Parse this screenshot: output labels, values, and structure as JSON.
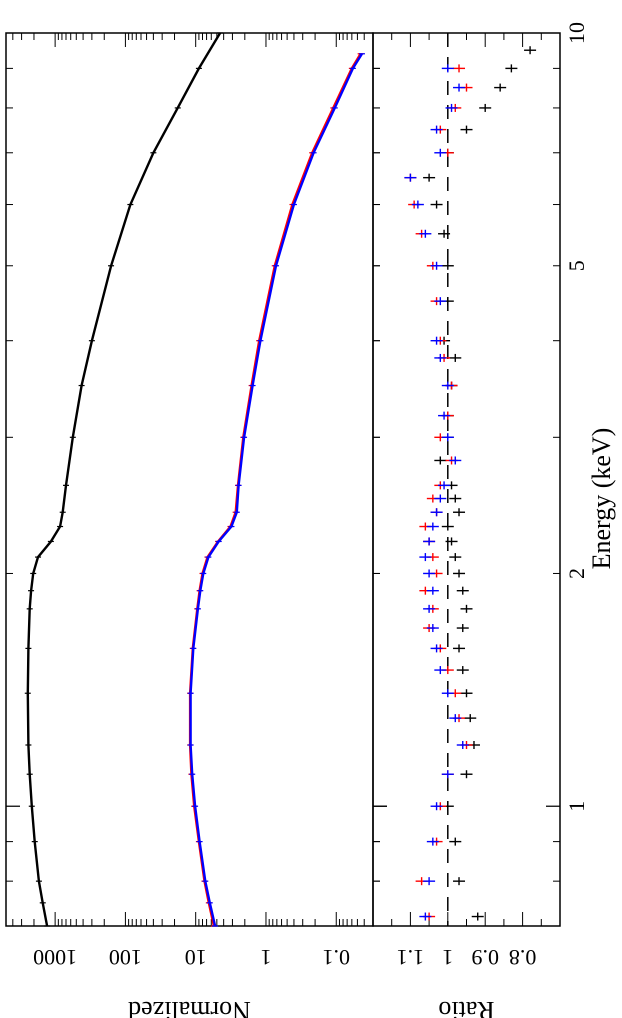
{
  "chart_data": [
    {
      "type": "line",
      "panel": "upper",
      "ylabel": "Normalized",
      "yscale": "log",
      "xscale": "log",
      "xlim": [
        0.7,
        10
      ],
      "ylim": [
        0.03,
        5000
      ],
      "yticks": [
        1000,
        100,
        10,
        1,
        0.1
      ],
      "ytick_labels": [
        "1000",
        "100",
        "10",
        "1",
        "0.1"
      ],
      "grid": false,
      "series": [
        {
          "color": "#000000",
          "x": [
            0.7,
            0.75,
            0.8,
            0.9,
            1.0,
            1.1,
            1.2,
            1.4,
            1.6,
            1.8,
            1.9,
            2.0,
            2.1,
            2.2,
            2.3,
            2.4,
            2.6,
            3.0,
            3.5,
            4.0,
            5.0,
            6.0,
            7.0,
            8.0,
            9.0,
            10.0
          ],
          "y": [
            1300,
            1500,
            1700,
            1950,
            2150,
            2300,
            2400,
            2450,
            2400,
            2300,
            2200,
            2050,
            1750,
            1150,
            850,
            780,
            700,
            560,
            420,
            300,
            160,
            85,
            40,
            18,
            9,
            4.5
          ]
        },
        {
          "color": "#ff0000",
          "x": [
            0.7,
            0.75,
            0.8,
            0.9,
            1.0,
            1.1,
            1.2,
            1.4,
            1.6,
            1.8,
            1.9,
            2.0,
            2.1,
            2.2,
            2.3,
            2.4,
            2.6,
            3.0,
            3.5,
            4.0,
            5.0,
            6.0,
            7.0,
            8.0,
            9.0,
            9.4
          ],
          "y": [
            5.5,
            6.5,
            7.5,
            9.0,
            10.5,
            11.5,
            12.0,
            12.0,
            11.0,
            9.5,
            8.8,
            8.0,
            6.8,
            4.8,
            3.2,
            2.7,
            2.5,
            2.1,
            1.6,
            1.25,
            0.75,
            0.42,
            0.22,
            0.11,
            0.06,
            0.045
          ]
        },
        {
          "color": "#0000ff",
          "x": [
            0.7,
            0.75,
            0.8,
            0.9,
            1.0,
            1.1,
            1.2,
            1.4,
            1.6,
            1.8,
            1.9,
            2.0,
            2.1,
            2.2,
            2.3,
            2.4,
            2.6,
            3.0,
            3.5,
            4.0,
            5.0,
            6.0,
            7.0,
            8.0,
            9.0,
            9.4
          ],
          "y": [
            5.3,
            6.3,
            7.3,
            8.8,
            10.2,
            11.2,
            11.8,
            11.8,
            10.8,
            9.3,
            8.6,
            7.8,
            6.6,
            4.7,
            3.1,
            2.6,
            2.45,
            2.05,
            1.55,
            1.2,
            0.72,
            0.4,
            0.21,
            0.105,
            0.058,
            0.043
          ]
        }
      ]
    },
    {
      "type": "scatter",
      "panel": "lower",
      "ylabel": "Ratio",
      "xlabel": "Energy (keV)",
      "xscale": "log",
      "xlim": [
        0.7,
        10
      ],
      "ylim": [
        0.7,
        1.2
      ],
      "yticks": [
        1.1,
        1,
        0.9,
        0.8
      ],
      "ytick_labels": [
        "1.1",
        "1",
        "0.9",
        "0.8"
      ],
      "xticks": [
        1,
        2,
        5,
        10
      ],
      "xtick_labels": [
        "1",
        "2",
        "5",
        "10"
      ],
      "reference_line": 1.0,
      "grid": false,
      "series": [
        {
          "color": "#000000",
          "x": [
            0.72,
            0.8,
            0.9,
            1.0,
            1.1,
            1.2,
            1.3,
            1.4,
            1.5,
            1.6,
            1.7,
            1.8,
            1.9,
            2.0,
            2.1,
            2.2,
            2.3,
            2.4,
            2.5,
            2.6,
            2.8,
            3.0,
            3.2,
            3.5,
            3.8,
            4.0,
            4.5,
            5.0,
            5.5,
            6.0,
            6.5,
            7.0,
            7.5,
            8.0,
            8.5,
            9.0,
            9.5
          ],
          "y": [
            0.92,
            0.97,
            0.98,
            1.0,
            0.95,
            0.93,
            0.94,
            0.95,
            0.96,
            0.97,
            0.96,
            0.95,
            0.96,
            0.97,
            0.98,
            0.99,
            1.0,
            0.97,
            0.98,
            0.99,
            1.02,
            1.0,
            1.0,
            0.99,
            0.98,
            1.01,
            1.0,
            1.0,
            1.01,
            1.03,
            1.05,
            1.0,
            0.95,
            0.9,
            0.86,
            0.83,
            0.78
          ]
        },
        {
          "color": "#ff0000",
          "x": [
            0.72,
            0.8,
            0.9,
            1.0,
            1.1,
            1.2,
            1.3,
            1.4,
            1.5,
            1.6,
            1.7,
            1.8,
            1.9,
            2.0,
            2.1,
            2.2,
            2.3,
            2.4,
            2.5,
            2.6,
            2.8,
            3.0,
            3.2,
            3.5,
            3.8,
            4.0,
            4.5,
            5.0,
            5.5,
            6.0,
            6.5,
            7.0,
            7.5,
            8.0,
            8.5,
            9.0
          ],
          "y": [
            1.05,
            1.07,
            1.03,
            1.02,
            1.0,
            0.95,
            0.97,
            0.98,
            1.0,
            1.02,
            1.05,
            1.04,
            1.06,
            1.03,
            1.04,
            1.05,
            1.06,
            1.03,
            1.04,
            1.02,
            0.99,
            1.02,
            1.0,
            0.99,
            1.01,
            1.02,
            1.03,
            1.04,
            1.07,
            1.09,
            1.1,
            1.0,
            1.02,
            0.98,
            0.95,
            0.97
          ]
        },
        {
          "color": "#0000ff",
          "x": [
            0.72,
            0.8,
            0.9,
            1.0,
            1.1,
            1.2,
            1.3,
            1.4,
            1.5,
            1.6,
            1.7,
            1.8,
            1.9,
            2.0,
            2.1,
            2.2,
            2.3,
            2.4,
            2.5,
            2.6,
            2.8,
            3.0,
            3.2,
            3.5,
            3.8,
            4.0,
            4.5,
            5.0,
            5.5,
            6.0,
            6.5,
            7.0,
            7.5,
            8.0,
            8.5,
            9.0
          ],
          "y": [
            1.06,
            1.05,
            1.04,
            1.03,
            1.0,
            0.96,
            0.98,
            1.0,
            1.02,
            1.03,
            1.04,
            1.05,
            1.04,
            1.05,
            1.06,
            1.05,
            1.04,
            1.03,
            1.02,
            1.01,
            0.98,
            1.0,
            1.01,
            1.0,
            1.02,
            1.03,
            1.02,
            1.03,
            1.06,
            1.08,
            1.1,
            1.02,
            1.03,
            0.99,
            0.97,
            1.0
          ]
        }
      ]
    }
  ]
}
